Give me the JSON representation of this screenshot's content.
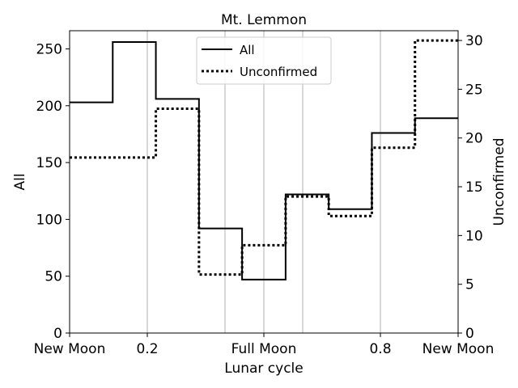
{
  "chart_data": {
    "type": "line",
    "step": "post",
    "title": "Mt. Lemmon",
    "xlabel": "Lunar cycle",
    "ylabel_left": "All",
    "ylabel_right": "Unconfirmed",
    "xlim": [
      0,
      1
    ],
    "ylim_left": [
      0,
      266
    ],
    "ylim_right": [
      0,
      31
    ],
    "x_ticks": [
      {
        "value": 0.0,
        "label": "New Moon"
      },
      {
        "value": 0.2,
        "label": "0.2"
      },
      {
        "value": 0.5,
        "label": "Full Moon"
      },
      {
        "value": 0.8,
        "label": "0.8"
      },
      {
        "value": 1.0,
        "label": "New Moon"
      }
    ],
    "vertical_gridlines": [
      0.2,
      0.4,
      0.5,
      0.6,
      0.8
    ],
    "y_ticks_left": [
      0,
      50,
      100,
      150,
      200,
      250
    ],
    "y_ticks_right": [
      0,
      5,
      10,
      15,
      20,
      25,
      30
    ],
    "legend_placement": "upper-center",
    "series": [
      {
        "name": "All",
        "axis": "left",
        "style": "solid",
        "color": "#000000",
        "x": [
          0.0,
          0.111,
          0.222,
          0.333,
          0.444,
          0.556,
          0.667,
          0.778,
          0.889,
          1.0
        ],
        "values": [
          203,
          256,
          206,
          92,
          47,
          122,
          109,
          176,
          189,
          189
        ]
      },
      {
        "name": "Unconfirmed",
        "axis": "right",
        "style": "dotted",
        "color": "#000000",
        "x": [
          0.0,
          0.111,
          0.222,
          0.333,
          0.444,
          0.556,
          0.667,
          0.778,
          0.889,
          1.0
        ],
        "values": [
          18,
          18,
          23,
          6,
          9,
          14,
          12,
          19,
          30,
          30
        ]
      }
    ]
  }
}
